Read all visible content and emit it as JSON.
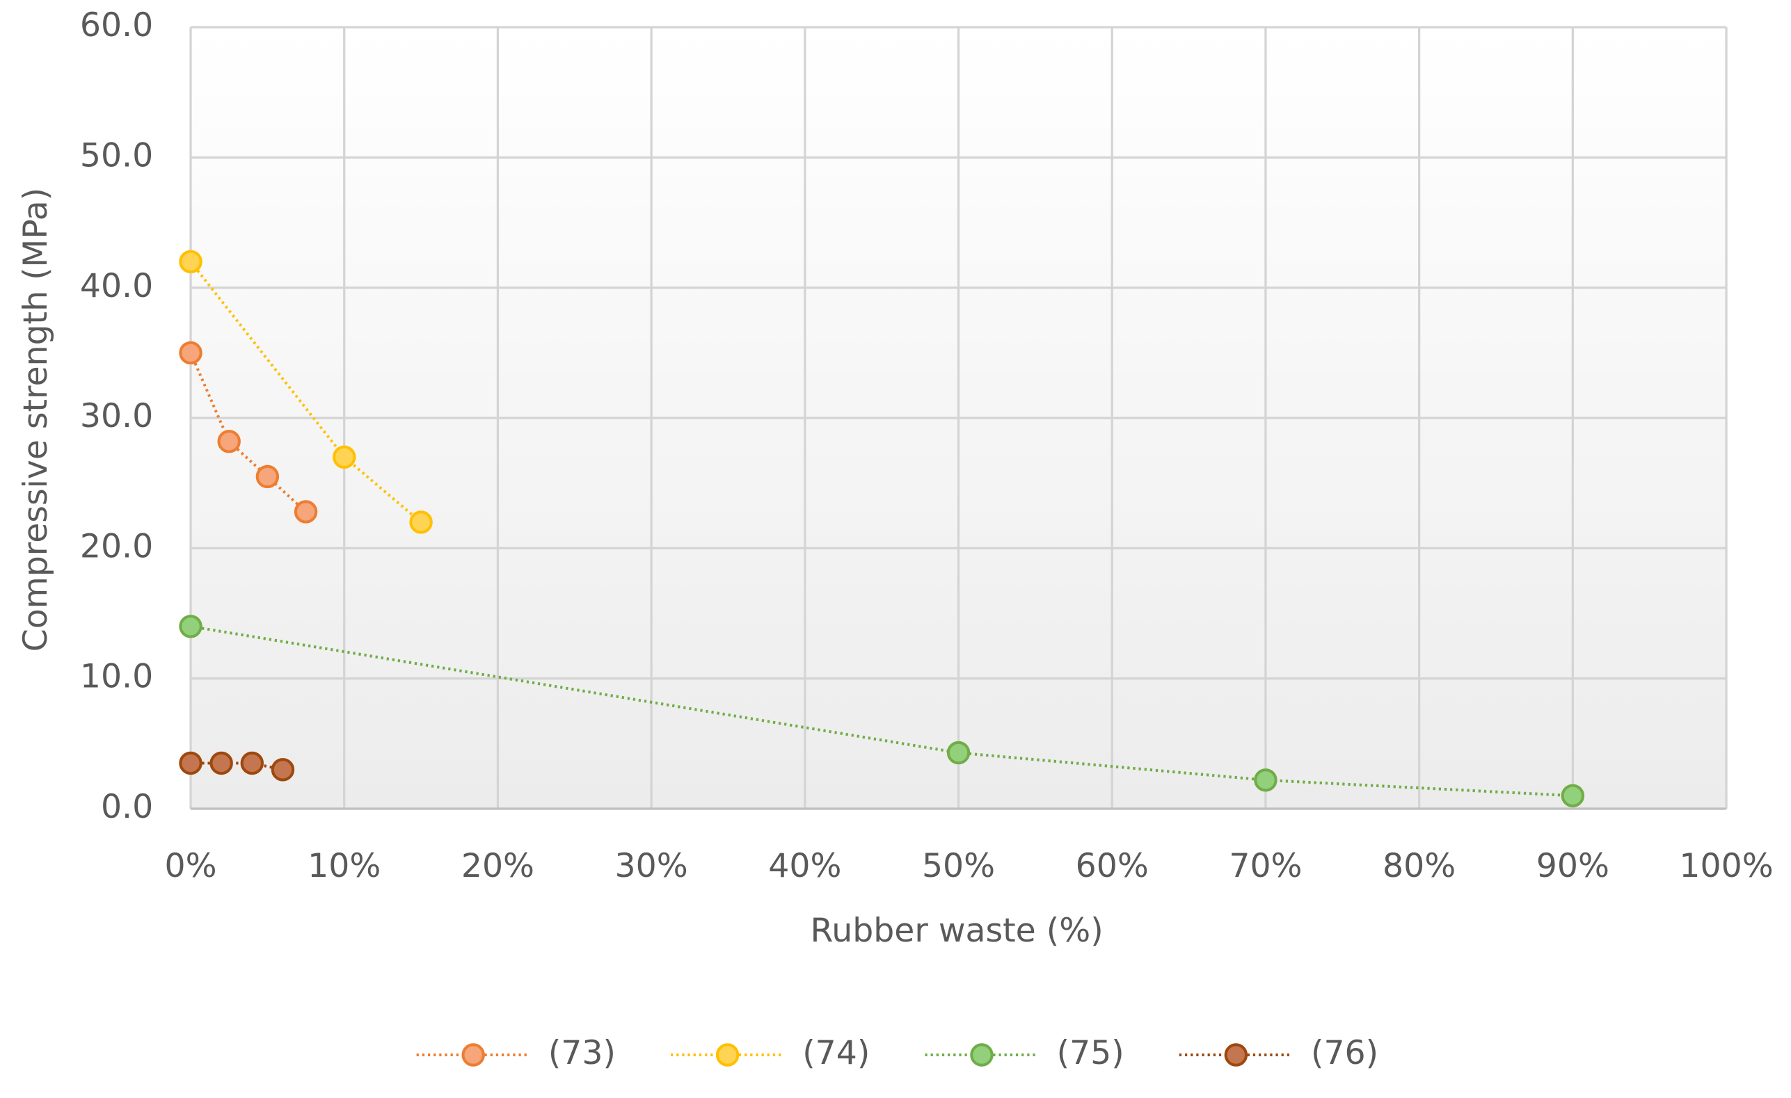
{
  "chart_data": {
    "type": "scatter-line",
    "x_label": "Rubber waste (%)",
    "y_label": "Compressive strength (MPa)",
    "xlim": [
      0,
      100
    ],
    "xticks": [
      {
        "value": 0,
        "label": "0%"
      },
      {
        "value": 10,
        "label": "10%"
      },
      {
        "value": 20,
        "label": "20%"
      },
      {
        "value": 30,
        "label": "30%"
      },
      {
        "value": 40,
        "label": "40%"
      },
      {
        "value": 50,
        "label": "50%"
      },
      {
        "value": 60,
        "label": "60%"
      },
      {
        "value": 70,
        "label": "70%"
      },
      {
        "value": 80,
        "label": "80%"
      },
      {
        "value": 90,
        "label": "90%"
      },
      {
        "value": 100,
        "label": "100%"
      }
    ],
    "ylim": [
      0,
      60
    ],
    "yticks": [
      {
        "value": 0,
        "label": "0.0"
      },
      {
        "value": 10,
        "label": "10.0"
      },
      {
        "value": 20,
        "label": "20.0"
      },
      {
        "value": 30,
        "label": "30.0"
      },
      {
        "value": 40,
        "label": "40.0"
      },
      {
        "value": 50,
        "label": "50.0"
      },
      {
        "value": 60,
        "label": "60.0"
      }
    ],
    "grid": true,
    "legend": "bottom",
    "series": [
      {
        "name": "(73)",
        "color": "#ed7d31",
        "fill": "#f7a57a",
        "x": [
          0,
          2.5,
          5,
          7.5
        ],
        "values": [
          35,
          28.2,
          25.5,
          22.8
        ]
      },
      {
        "name": "(74)",
        "color": "#ffc000",
        "fill": "#ffd454",
        "x": [
          0,
          10,
          15
        ],
        "values": [
          42,
          27,
          22
        ]
      },
      {
        "name": "(75)",
        "color": "#70ad47",
        "fill": "#93d07c",
        "x": [
          0,
          50,
          70,
          90
        ],
        "values": [
          14,
          4.3,
          2.2,
          1.0
        ]
      },
      {
        "name": "(76)",
        "color": "#9e480e",
        "fill": "#c47650",
        "x": [
          0,
          2,
          4,
          6
        ],
        "values": [
          3.5,
          3.5,
          3.5,
          3.0
        ]
      }
    ]
  }
}
